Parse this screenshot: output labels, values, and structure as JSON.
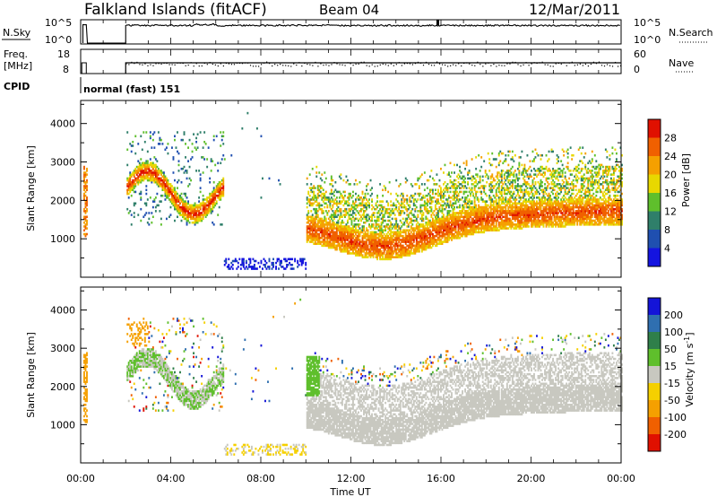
{
  "header": {
    "station": "Falkland Islands (fitACF)",
    "beam": "Beam 04",
    "date": "12/Mar/2011"
  },
  "panels": {
    "nsky": {
      "label": "N.Sky",
      "right_label": "N.Search",
      "left_ticks": [
        "10^5",
        "10^0"
      ],
      "right_ticks": [
        "10^5",
        "10^0"
      ]
    },
    "freq": {
      "label_top": "Freq.",
      "label_bottom": "[MHz]",
      "right_label": "Nave",
      "left_ticks": [
        "18",
        "8"
      ],
      "right_ticks": [
        "60",
        "0"
      ]
    },
    "cpid": {
      "label": "CPID",
      "text": "normal (fast) 151"
    }
  },
  "chart_data": [
    {
      "type": "heatmap",
      "name": "power",
      "ylabel": "Slant Range [km]",
      "ylim": [
        0,
        4600
      ],
      "yticks": [
        "1000",
        "2000",
        "3000",
        "4000"
      ],
      "colorbar": {
        "label": "Power [dB]",
        "ticks": [
          "4",
          "8",
          "12",
          "16",
          "20",
          "24",
          "28"
        ],
        "colors": [
          "#1414e0",
          "#1f4fb0",
          "#2f7f6a",
          "#5fbf2c",
          "#e8d800",
          "#f5a000",
          "#f06000",
          "#e01000"
        ]
      },
      "regions": [
        {
          "t": [
            2.0,
            6.3
          ],
          "r": [
            1300,
            3800
          ],
          "note": "morning band"
        },
        {
          "t": [
            10.0,
            24.0
          ],
          "r": [
            500,
            2800
          ],
          "note": "evening band"
        },
        {
          "t": [
            2.0,
            10.0
          ],
          "r": [
            200,
            500
          ],
          "note": "near-range scatter"
        }
      ]
    },
    {
      "type": "heatmap",
      "name": "velocity",
      "ylabel": "Slant Range [km]",
      "ylim": [
        0,
        4600
      ],
      "yticks": [
        "1000",
        "2000",
        "3000",
        "4000"
      ],
      "colorbar": {
        "label": "Velocity [m s",
        "label_sup": "-1",
        "label_end": "]",
        "ticks": [
          "200",
          "100",
          "50",
          "15",
          "-15",
          "-50",
          "-100",
          "-200"
        ],
        "colors": [
          "#1414d8",
          "#2f6fb0",
          "#2f7f4a",
          "#5fbf2c",
          "#c8c8c0",
          "#f5d000",
          "#f5a000",
          "#f06000",
          "#e01000"
        ]
      }
    }
  ],
  "time_axis": {
    "label": "Time UT",
    "ticks": [
      "00:00",
      "04:00",
      "08:00",
      "12:00",
      "16:00",
      "20:00",
      "00:00"
    ]
  }
}
